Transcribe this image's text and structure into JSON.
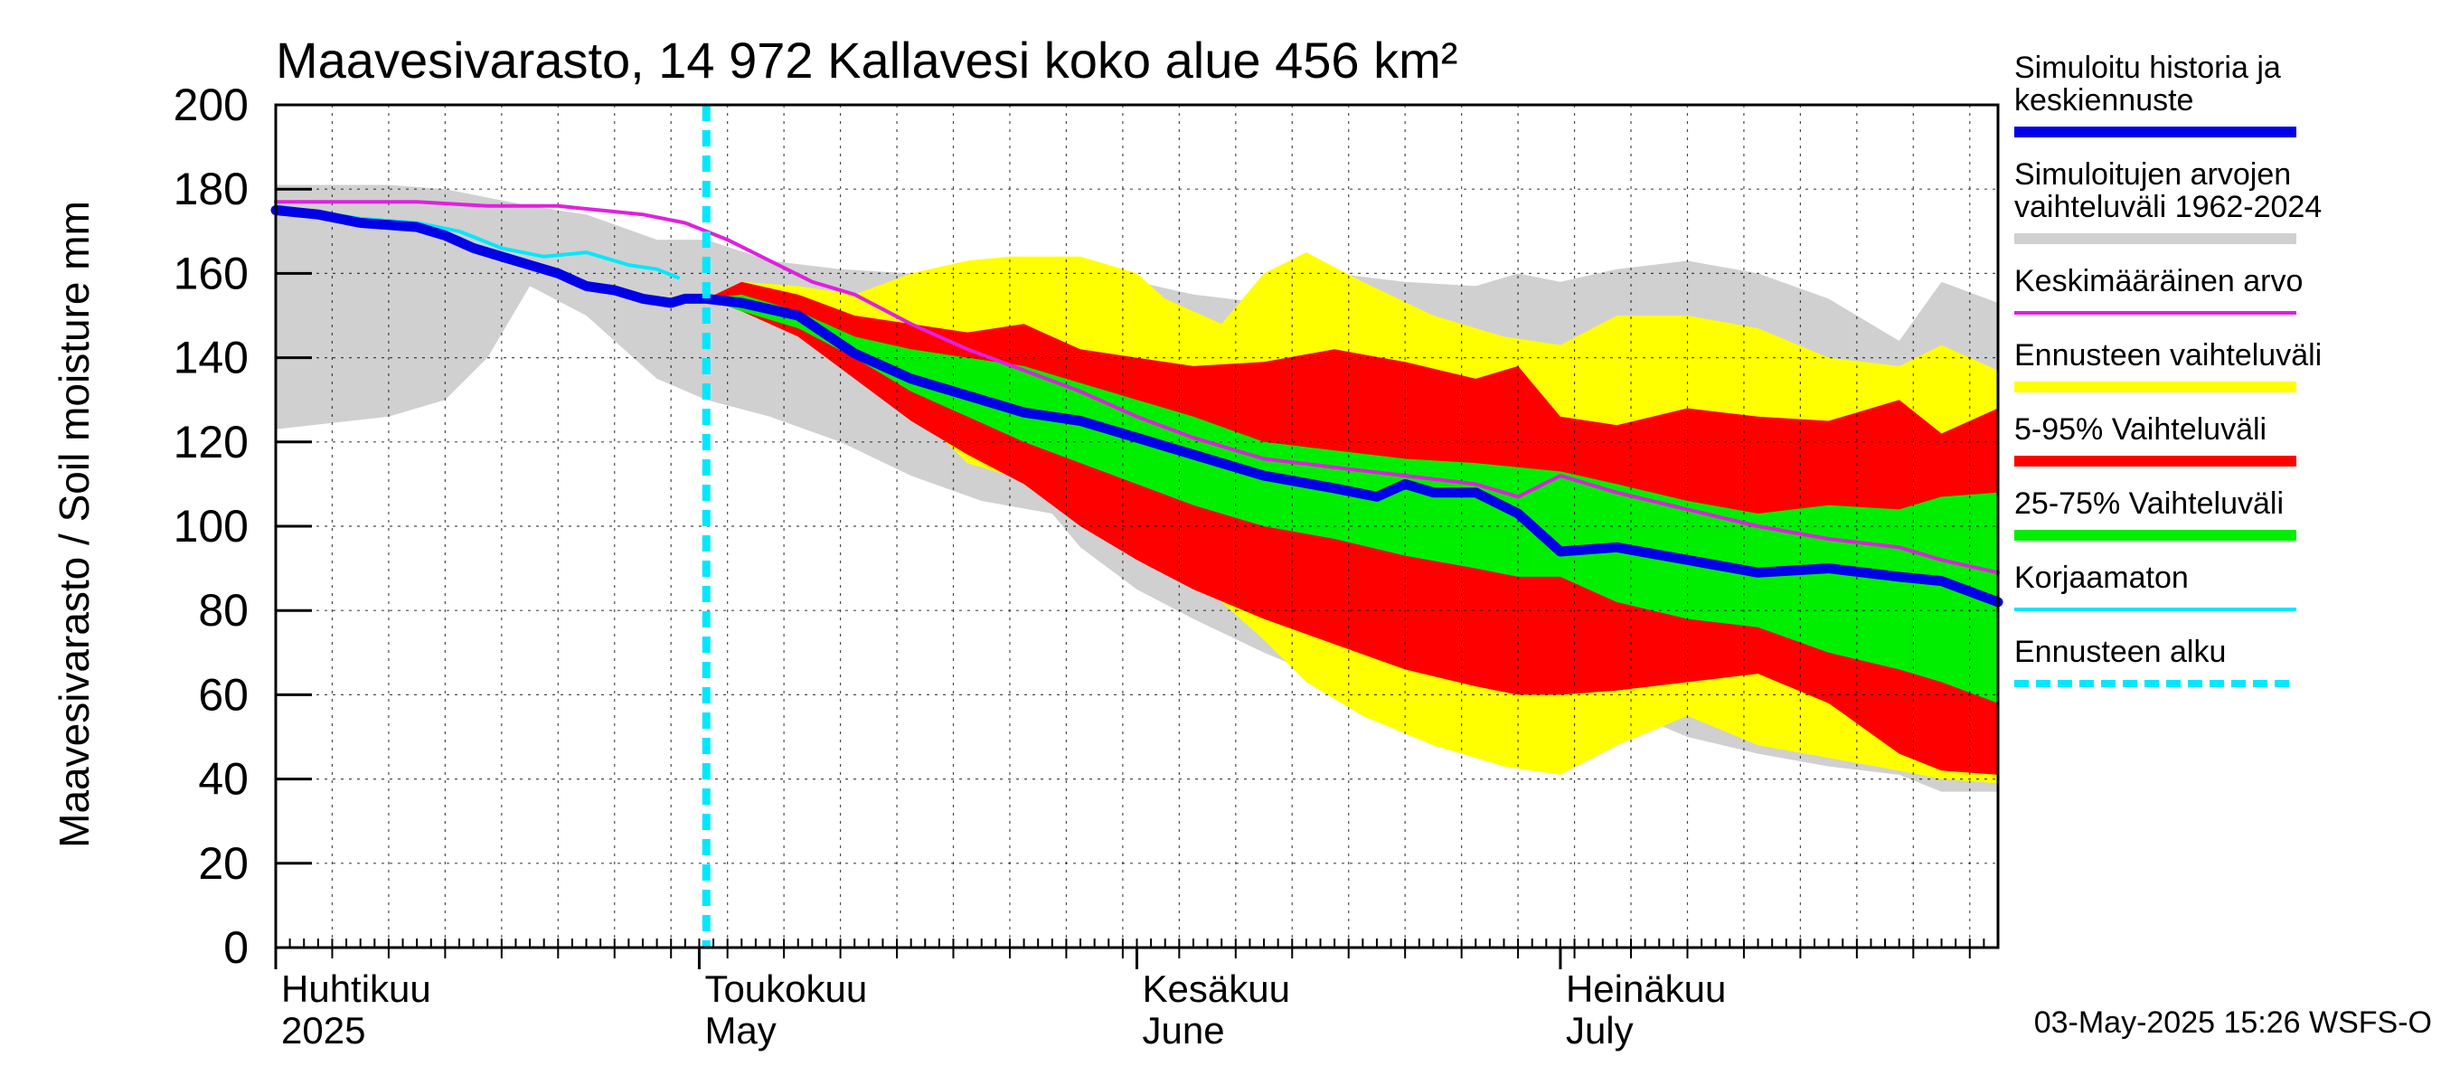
{
  "chart_data": {
    "type": "area",
    "title": "Maavesivarasto, 14 972 Kallavesi koko alue 456 km²",
    "ylabel": "Maavesivarasto / Soil moisture   mm",
    "ylim": [
      0,
      200
    ],
    "yticks": [
      0,
      20,
      40,
      60,
      80,
      100,
      120,
      140,
      160,
      180,
      200
    ],
    "x_range_days": [
      0,
      122
    ],
    "month_labels": [
      {
        "day": 0,
        "fi": "Huhtikuu",
        "en": "2025"
      },
      {
        "day": 30,
        "fi": "Toukokuu",
        "en": "May"
      },
      {
        "day": 61,
        "fi": "Kesäkuu",
        "en": "June"
      },
      {
        "day": 91,
        "fi": "Heinäkuu",
        "en": "July"
      }
    ],
    "forecast_start_day": 30.5,
    "series": [
      {
        "name": "Simuloitujen arvojen vaihteluväli 1962-2024",
        "kind": "band",
        "color": "#d0d0d0",
        "x": [
          0,
          8,
          12,
          15,
          18,
          22,
          27,
          30.5,
          35,
          40,
          45,
          50,
          55,
          57,
          61,
          65,
          70,
          75,
          80,
          85,
          88,
          91,
          95,
          100,
          105,
          110,
          115,
          118,
          122
        ],
        "upper": [
          181,
          181,
          180,
          178,
          176,
          174,
          168,
          168,
          163,
          161,
          160,
          158,
          157,
          154,
          158,
          155,
          153,
          160,
          158,
          157,
          160,
          158,
          161,
          163,
          160,
          154,
          144,
          158,
          153
        ],
        "lower": [
          123,
          126,
          130,
          140,
          157,
          150,
          135,
          130,
          126,
          120,
          112,
          106,
          103,
          95,
          85,
          78,
          70,
          63,
          58,
          56,
          55,
          56,
          57,
          50,
          46,
          43,
          41,
          37,
          37
        ]
      },
      {
        "name": "Ennusteen vaihteluväli",
        "kind": "band",
        "color": "#ffff00",
        "x": [
          30.5,
          33,
          37,
          41,
          45,
          49,
          52,
          57,
          61,
          63,
          67,
          70,
          73,
          77,
          82,
          87,
          91,
          95,
          100,
          105,
          110,
          115,
          118,
          122
        ],
        "upper": [
          154,
          158,
          157,
          155,
          160,
          163,
          164,
          164,
          160,
          154,
          148,
          160,
          165,
          158,
          150,
          145,
          143,
          150,
          150,
          147,
          140,
          138,
          143,
          137
        ],
        "lower": [
          154,
          152,
          147,
          140,
          128,
          115,
          112,
          105,
          97,
          92,
          82,
          73,
          63,
          55,
          48,
          43,
          41,
          48,
          55,
          48,
          45,
          42,
          40,
          39
        ]
      },
      {
        "name": "5-95% Vaihteluväli",
        "kind": "band",
        "color": "#ff0000",
        "x": [
          30.5,
          33,
          37,
          41,
          45,
          49,
          53,
          57,
          61,
          65,
          70,
          75,
          80,
          85,
          88,
          91,
          95,
          100,
          105,
          110,
          115,
          118,
          122
        ],
        "upper": [
          154,
          158,
          155,
          150,
          148,
          146,
          148,
          142,
          140,
          138,
          139,
          142,
          139,
          135,
          138,
          126,
          124,
          128,
          126,
          125,
          130,
          122,
          128
        ],
        "lower": [
          154,
          151,
          145,
          135,
          125,
          117,
          110,
          100,
          92,
          85,
          78,
          72,
          66,
          62,
          60,
          60,
          61,
          63,
          65,
          58,
          46,
          42,
          41
        ]
      },
      {
        "name": "25-75% Vaihteluväli",
        "kind": "band",
        "color": "#00ee00",
        "x": [
          30.5,
          33,
          37,
          41,
          45,
          49,
          53,
          57,
          61,
          65,
          70,
          75,
          80,
          85,
          88,
          91,
          95,
          100,
          105,
          110,
          115,
          118,
          122
        ],
        "upper": [
          154,
          155,
          151,
          145,
          142,
          140,
          138,
          134,
          130,
          126,
          120,
          118,
          116,
          115,
          114,
          113,
          110,
          106,
          103,
          105,
          104,
          107,
          108
        ],
        "lower": [
          154,
          151,
          147,
          140,
          132,
          126,
          120,
          115,
          110,
          105,
          100,
          97,
          93,
          90,
          88,
          88,
          82,
          78,
          76,
          70,
          66,
          63,
          58
        ]
      },
      {
        "name": "Keskimääräinen arvo",
        "kind": "line",
        "color": "#e020e0",
        "x": [
          0,
          5,
          10,
          15,
          20,
          23,
          26,
          29,
          32,
          35,
          38,
          41,
          45,
          49,
          53,
          57,
          61,
          65,
          70,
          75,
          80,
          85,
          88,
          91,
          95,
          100,
          105,
          110,
          115,
          118,
          122
        ],
        "values": [
          177,
          177,
          177,
          176,
          176,
          175,
          174,
          172,
          168,
          163,
          158,
          155,
          148,
          142,
          137,
          132,
          126,
          121,
          116,
          114,
          112,
          110,
          107,
          112,
          108,
          104,
          100,
          97,
          95,
          92,
          89
        ]
      },
      {
        "name": "Korjaamaton",
        "kind": "line",
        "color": "#00e8ff",
        "x": [
          0,
          6,
          10,
          13,
          16,
          19,
          22,
          25,
          27,
          28.5
        ],
        "values": [
          176,
          173,
          172,
          170,
          166,
          164,
          165,
          162,
          161,
          159
        ]
      },
      {
        "name": "Simuloitu historia ja keskiennuste",
        "kind": "line",
        "color": "#0000e6",
        "x": [
          0,
          3,
          6,
          10,
          12,
          14,
          16,
          18,
          20,
          22,
          24,
          26,
          28,
          29,
          30.5,
          33,
          37,
          41,
          45,
          49,
          53,
          57,
          61,
          65,
          70,
          75,
          78,
          80,
          82,
          85,
          88,
          91,
          95,
          100,
          105,
          110,
          115,
          118,
          122
        ],
        "values": [
          175,
          174,
          172,
          171,
          169,
          166,
          164,
          162,
          160,
          157,
          156,
          154,
          153,
          154,
          154,
          153,
          150,
          141,
          135,
          131,
          127,
          125,
          121,
          117,
          112,
          109,
          107,
          110,
          108,
          108,
          103,
          94,
          95,
          92,
          89,
          90,
          88,
          87,
          82
        ]
      }
    ],
    "legend": [
      {
        "label": "Simuloitu historia ja keskiennuste",
        "color": "#0000e6",
        "style": "thick"
      },
      {
        "label": "Simuloitujen arvojen vaihteluväli 1962-2024",
        "color": "#d0d0d0",
        "style": "thick"
      },
      {
        "label": "Keskimääräinen arvo",
        "color": "#e020e0",
        "style": "thin"
      },
      {
        "label": "Ennusteen vaihteluväli",
        "color": "#ffff00",
        "style": "thick"
      },
      {
        "label": "5-95% Vaihteluväli",
        "color": "#ff0000",
        "style": "thick"
      },
      {
        "label": "25-75% Vaihteluväli",
        "color": "#00ee00",
        "style": "thick"
      },
      {
        "label": "Korjaamaton",
        "color": "#00e8ff",
        "style": "thin"
      },
      {
        "label": "Ennusteen alku",
        "color": "#00e8ff",
        "style": "dashed"
      }
    ],
    "timestamp": "03-May-2025 15:26 WSFS-O"
  }
}
